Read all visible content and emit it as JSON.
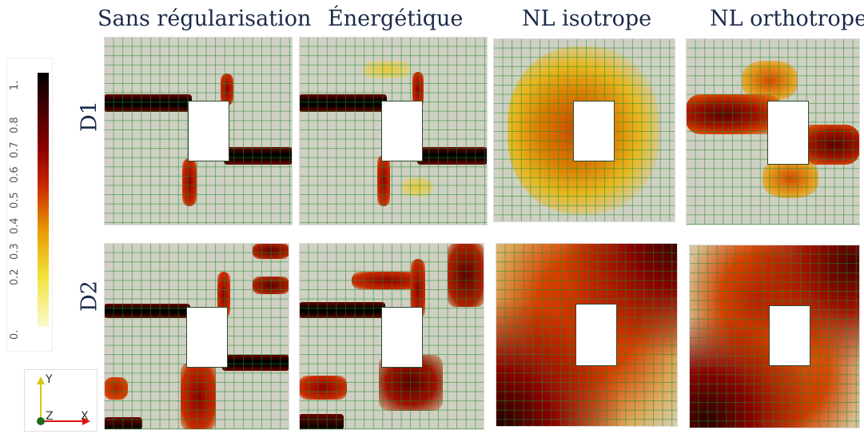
{
  "columns": [
    "Sans régularisation",
    "Énergétique",
    "NL isotrope",
    "NL orthotrope"
  ],
  "rows": [
    "D1",
    "D2"
  ],
  "colorbar": {
    "ticks": [
      "1.",
      "0.8",
      "0.7",
      "0.6",
      "0.5",
      "0.4",
      "0.3",
      "0.2",
      "0."
    ],
    "colors": {
      "max": "#000000",
      "high": "#8b0000",
      "mid": "#cc2a00",
      "low": "#f2e23a",
      "min": "#fafad0"
    }
  },
  "axes": {
    "x": "X",
    "y": "Y",
    "z": "Z"
  },
  "colors": {
    "background": "#cfd0c3",
    "grid": "#1e8c28",
    "title": "#1b2a4a"
  }
}
